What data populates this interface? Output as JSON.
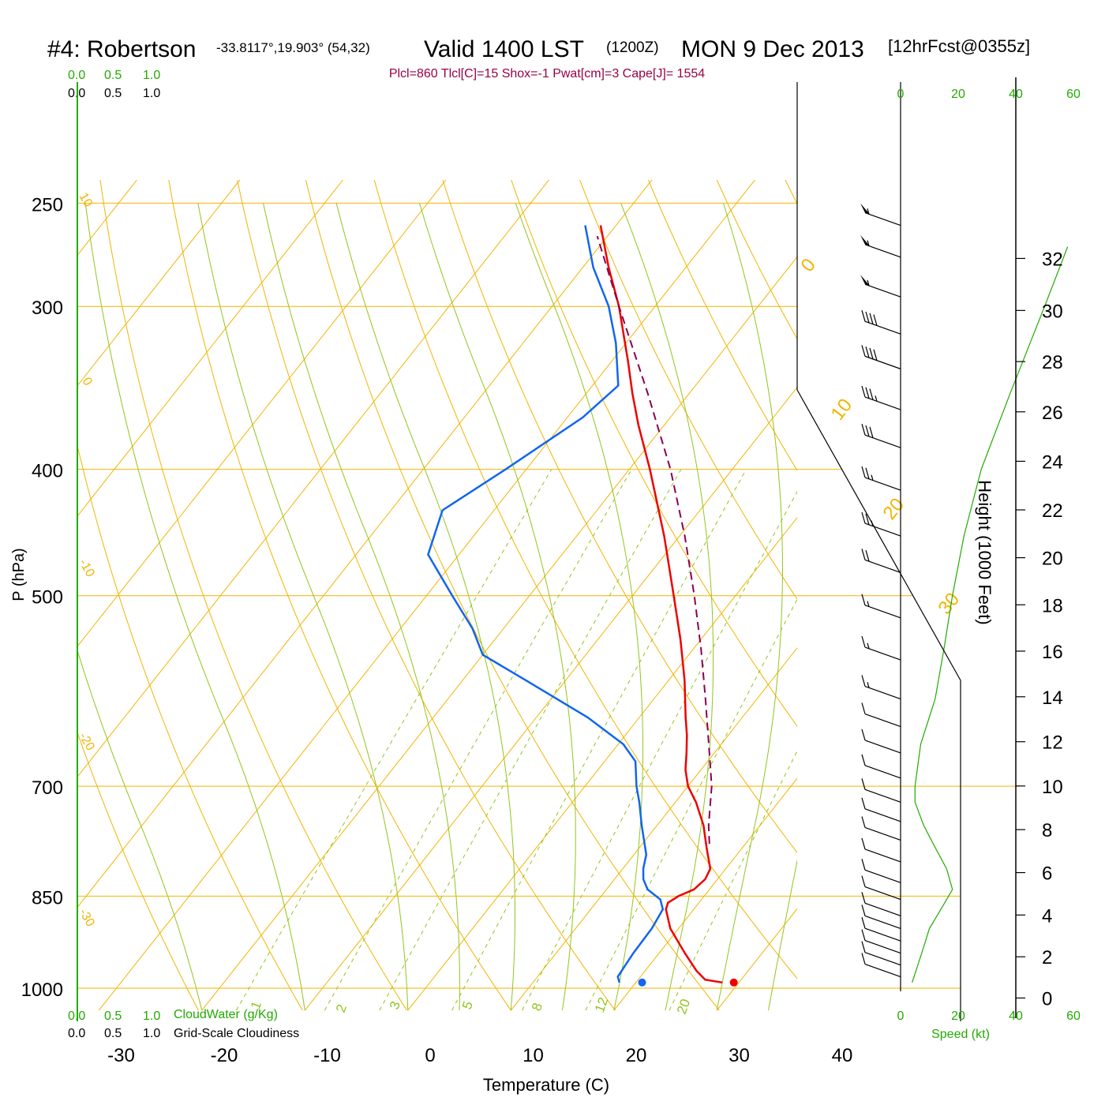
{
  "header": {
    "station": "#4: Robertson",
    "coords": "-33.8117°,19.903° (54,32)",
    "valid": "Valid 1400 LST",
    "zulu": "(1200Z)",
    "date": "MON 9 Dec 2013",
    "forecast": "[12hrFcst@0355z]",
    "indices": "Plcl=860 Tlcl[C]=15 Shox=-1 Pwat[cm]=3 Cape[J]= 1554"
  },
  "scales": {
    "cloudwater_ticks": [
      "0.0",
      "0.5",
      "1.0"
    ],
    "cloudiness_ticks": [
      "0.0",
      "0.5",
      "1.0"
    ],
    "cloudwater_label": "CloudWater (g/Kg)",
    "cloudiness_label": "Grid-Scale Cloudiness",
    "speed_ticks": [
      "0",
      "20",
      "40",
      "60"
    ],
    "speed_label": "Speed (kt)"
  },
  "colors": {
    "isotherm": "#f2b400",
    "dry_adiabat": "#f2b400",
    "moist_adiabat": "#92c41c",
    "mixing_ratio": "#92c41c",
    "temperature": "#ee0000",
    "dewpoint": "#1166ee",
    "parcel": "#880055",
    "indices_text": "#990044",
    "scale_green": "#22aa00"
  },
  "chart_data": {
    "type": "line",
    "subtype": "skew-t log-p sounding",
    "xlabel": "Temperature (C)",
    "ylabel": "P (hPa)",
    "y2label": "Height (1000 Feet)",
    "xlim": [
      -35,
      41
    ],
    "ylim": [
      1030,
      250
    ],
    "x_ticks": [
      "-30",
      "-20",
      "-10",
      "0",
      "10",
      "20",
      "30",
      "40"
    ],
    "y_ticks": [
      {
        "p": 250,
        "label": "250"
      },
      {
        "p": 300,
        "label": "300"
      },
      {
        "p": 400,
        "label": "400"
      },
      {
        "p": 500,
        "label": "500"
      },
      {
        "p": 700,
        "label": "700"
      },
      {
        "p": 850,
        "label": "850"
      },
      {
        "p": 1000,
        "label": "1000"
      }
    ],
    "height_ticks": [
      {
        "ft": 32,
        "label": "32"
      },
      {
        "ft": 30,
        "label": "30"
      },
      {
        "ft": 28,
        "label": "28"
      },
      {
        "ft": 26,
        "label": "26"
      },
      {
        "ft": 24,
        "label": "24"
      },
      {
        "ft": 22,
        "label": "22"
      },
      {
        "ft": 20,
        "label": "20"
      },
      {
        "ft": 18,
        "label": "18"
      },
      {
        "ft": 16,
        "label": "16"
      },
      {
        "ft": 14,
        "label": "14"
      },
      {
        "ft": 12,
        "label": "12"
      },
      {
        "ft": 10,
        "label": "10"
      },
      {
        "ft": 8,
        "label": "8"
      },
      {
        "ft": 6,
        "label": "6"
      },
      {
        "ft": 4,
        "label": "4"
      },
      {
        "ft": 2,
        "label": "2"
      },
      {
        "ft": 0,
        "label": "0"
      }
    ],
    "isotherm_labels": [
      {
        "t": 0,
        "text": "0"
      },
      {
        "t": 10,
        "text": "10"
      },
      {
        "t": 20,
        "text": "20"
      },
      {
        "t": 30,
        "text": "30"
      },
      {
        "t": 10,
        "text": "10"
      },
      {
        "t": 0,
        "text": "0"
      },
      {
        "t": -10,
        "text": "-10"
      },
      {
        "t": -20,
        "text": "-20"
      },
      {
        "t": -30,
        "text": "-30"
      }
    ],
    "mixing_ratio_labels": [
      "1",
      "2",
      "3",
      "5",
      "8",
      "12",
      "20"
    ],
    "series": [
      {
        "name": "Temperature",
        "points": [
          {
            "p": 990,
            "t": 28.4
          },
          {
            "p": 985,
            "t": 26.5
          },
          {
            "p": 970,
            "t": 25.0
          },
          {
            "p": 940,
            "t": 22.5
          },
          {
            "p": 900,
            "t": 19.2
          },
          {
            "p": 870,
            "t": 17.3
          },
          {
            "p": 860,
            "t": 17.0
          },
          {
            "p": 850,
            "t": 17.5
          },
          {
            "p": 840,
            "t": 18.5
          },
          {
            "p": 825,
            "t": 18.8
          },
          {
            "p": 810,
            "t": 18.5
          },
          {
            "p": 780,
            "t": 16.5
          },
          {
            "p": 750,
            "t": 14.5
          },
          {
            "p": 720,
            "t": 12.0
          },
          {
            "p": 700,
            "t": 10.0
          },
          {
            "p": 680,
            "t": 8.5
          },
          {
            "p": 660,
            "t": 7.3
          },
          {
            "p": 640,
            "t": 6.0
          },
          {
            "p": 620,
            "t": 4.5
          },
          {
            "p": 580,
            "t": 1.5
          },
          {
            "p": 540,
            "t": -2.0
          },
          {
            "p": 500,
            "t": -6.0
          },
          {
            "p": 450,
            "t": -11.5
          },
          {
            "p": 400,
            "t": -18.0
          },
          {
            "p": 370,
            "t": -22.5
          },
          {
            "p": 350,
            "t": -25.5
          },
          {
            "p": 330,
            "t": -28.5
          },
          {
            "p": 300,
            "t": -33.5
          },
          {
            "p": 280,
            "t": -37.5
          },
          {
            "p": 260,
            "t": -41.5
          }
        ]
      },
      {
        "name": "Dewpoint",
        "points": [
          {
            "p": 990,
            "t": 18.4
          },
          {
            "p": 980,
            "t": 17.8
          },
          {
            "p": 940,
            "t": 17.5
          },
          {
            "p": 900,
            "t": 17.4
          },
          {
            "p": 870,
            "t": 17.0
          },
          {
            "p": 855,
            "t": 16.0
          },
          {
            "p": 840,
            "t": 14.0
          },
          {
            "p": 825,
            "t": 12.8
          },
          {
            "p": 810,
            "t": 12.0
          },
          {
            "p": 790,
            "t": 11.2
          },
          {
            "p": 750,
            "t": 8.5
          },
          {
            "p": 720,
            "t": 6.5
          },
          {
            "p": 700,
            "t": 5.0
          },
          {
            "p": 670,
            "t": 3.0
          },
          {
            "p": 650,
            "t": 0.5
          },
          {
            "p": 620,
            "t": -5.0
          },
          {
            "p": 580,
            "t": -14.0
          },
          {
            "p": 555,
            "t": -20.0
          },
          {
            "p": 530,
            "t": -23.0
          },
          {
            "p": 500,
            "t": -27.5
          },
          {
            "p": 465,
            "t": -33.0
          },
          {
            "p": 430,
            "t": -35.0
          },
          {
            "p": 400,
            "t": -32.0
          },
          {
            "p": 365,
            "t": -28.5
          },
          {
            "p": 345,
            "t": -27.5
          },
          {
            "p": 320,
            "t": -31.0
          },
          {
            "p": 300,
            "t": -34.5
          },
          {
            "p": 280,
            "t": -39.0
          },
          {
            "p": 260,
            "t": -43.0
          }
        ]
      },
      {
        "name": "Parcel",
        "points": [
          {
            "p": 775,
            "t": 16.5
          },
          {
            "p": 750,
            "t": 15.0
          },
          {
            "p": 700,
            "t": 12.3
          },
          {
            "p": 650,
            "t": 8.8
          },
          {
            "p": 600,
            "t": 5.0
          },
          {
            "p": 550,
            "t": 0.8
          },
          {
            "p": 500,
            "t": -4.0
          },
          {
            "p": 450,
            "t": -9.5
          },
          {
            "p": 400,
            "t": -16.0
          },
          {
            "p": 350,
            "t": -24.0
          },
          {
            "p": 300,
            "t": -33.5
          },
          {
            "p": 265,
            "t": -41.0
          }
        ]
      }
    ],
    "surface_markers": [
      {
        "name": "Surface temperature",
        "p": 990,
        "t": 29.5
      },
      {
        "name": "Surface dewpoint",
        "p": 990,
        "t": 20.6
      }
    ],
    "wind_profile": [
      {
        "p": 990,
        "speed": 4
      },
      {
        "p": 960,
        "speed": 6
      },
      {
        "p": 930,
        "speed": 8
      },
      {
        "p": 900,
        "speed": 10
      },
      {
        "p": 870,
        "speed": 14
      },
      {
        "p": 840,
        "speed": 18
      },
      {
        "p": 810,
        "speed": 16
      },
      {
        "p": 780,
        "speed": 12
      },
      {
        "p": 750,
        "speed": 8
      },
      {
        "p": 720,
        "speed": 5
      },
      {
        "p": 700,
        "speed": 5
      },
      {
        "p": 650,
        "speed": 7
      },
      {
        "p": 600,
        "speed": 12
      },
      {
        "p": 550,
        "speed": 15
      },
      {
        "p": 500,
        "speed": 18
      },
      {
        "p": 450,
        "speed": 22
      },
      {
        "p": 400,
        "speed": 28
      },
      {
        "p": 350,
        "speed": 38
      },
      {
        "p": 300,
        "speed": 50
      },
      {
        "p": 270,
        "speed": 58
      }
    ],
    "wind_barbs": [
      {
        "p": 260,
        "kt": 55
      },
      {
        "p": 275,
        "kt": 55
      },
      {
        "p": 295,
        "kt": 55
      },
      {
        "p": 315,
        "kt": 40
      },
      {
        "p": 335,
        "kt": 40
      },
      {
        "p": 360,
        "kt": 35
      },
      {
        "p": 385,
        "kt": 30
      },
      {
        "p": 415,
        "kt": 25
      },
      {
        "p": 450,
        "kt": 25
      },
      {
        "p": 480,
        "kt": 20
      },
      {
        "p": 520,
        "kt": 15
      },
      {
        "p": 560,
        "kt": 15
      },
      {
        "p": 600,
        "kt": 15
      },
      {
        "p": 630,
        "kt": 10
      },
      {
        "p": 660,
        "kt": 10
      },
      {
        "p": 690,
        "kt": 10
      },
      {
        "p": 720,
        "kt": 10
      },
      {
        "p": 745,
        "kt": 10
      },
      {
        "p": 770,
        "kt": 10
      },
      {
        "p": 800,
        "kt": 10
      },
      {
        "p": 830,
        "kt": 10
      },
      {
        "p": 855,
        "kt": 10
      },
      {
        "p": 880,
        "kt": 10
      },
      {
        "p": 900,
        "kt": 10
      },
      {
        "p": 920,
        "kt": 10
      },
      {
        "p": 940,
        "kt": 10
      },
      {
        "p": 960,
        "kt": 10
      },
      {
        "p": 980,
        "kt": 10
      }
    ]
  }
}
